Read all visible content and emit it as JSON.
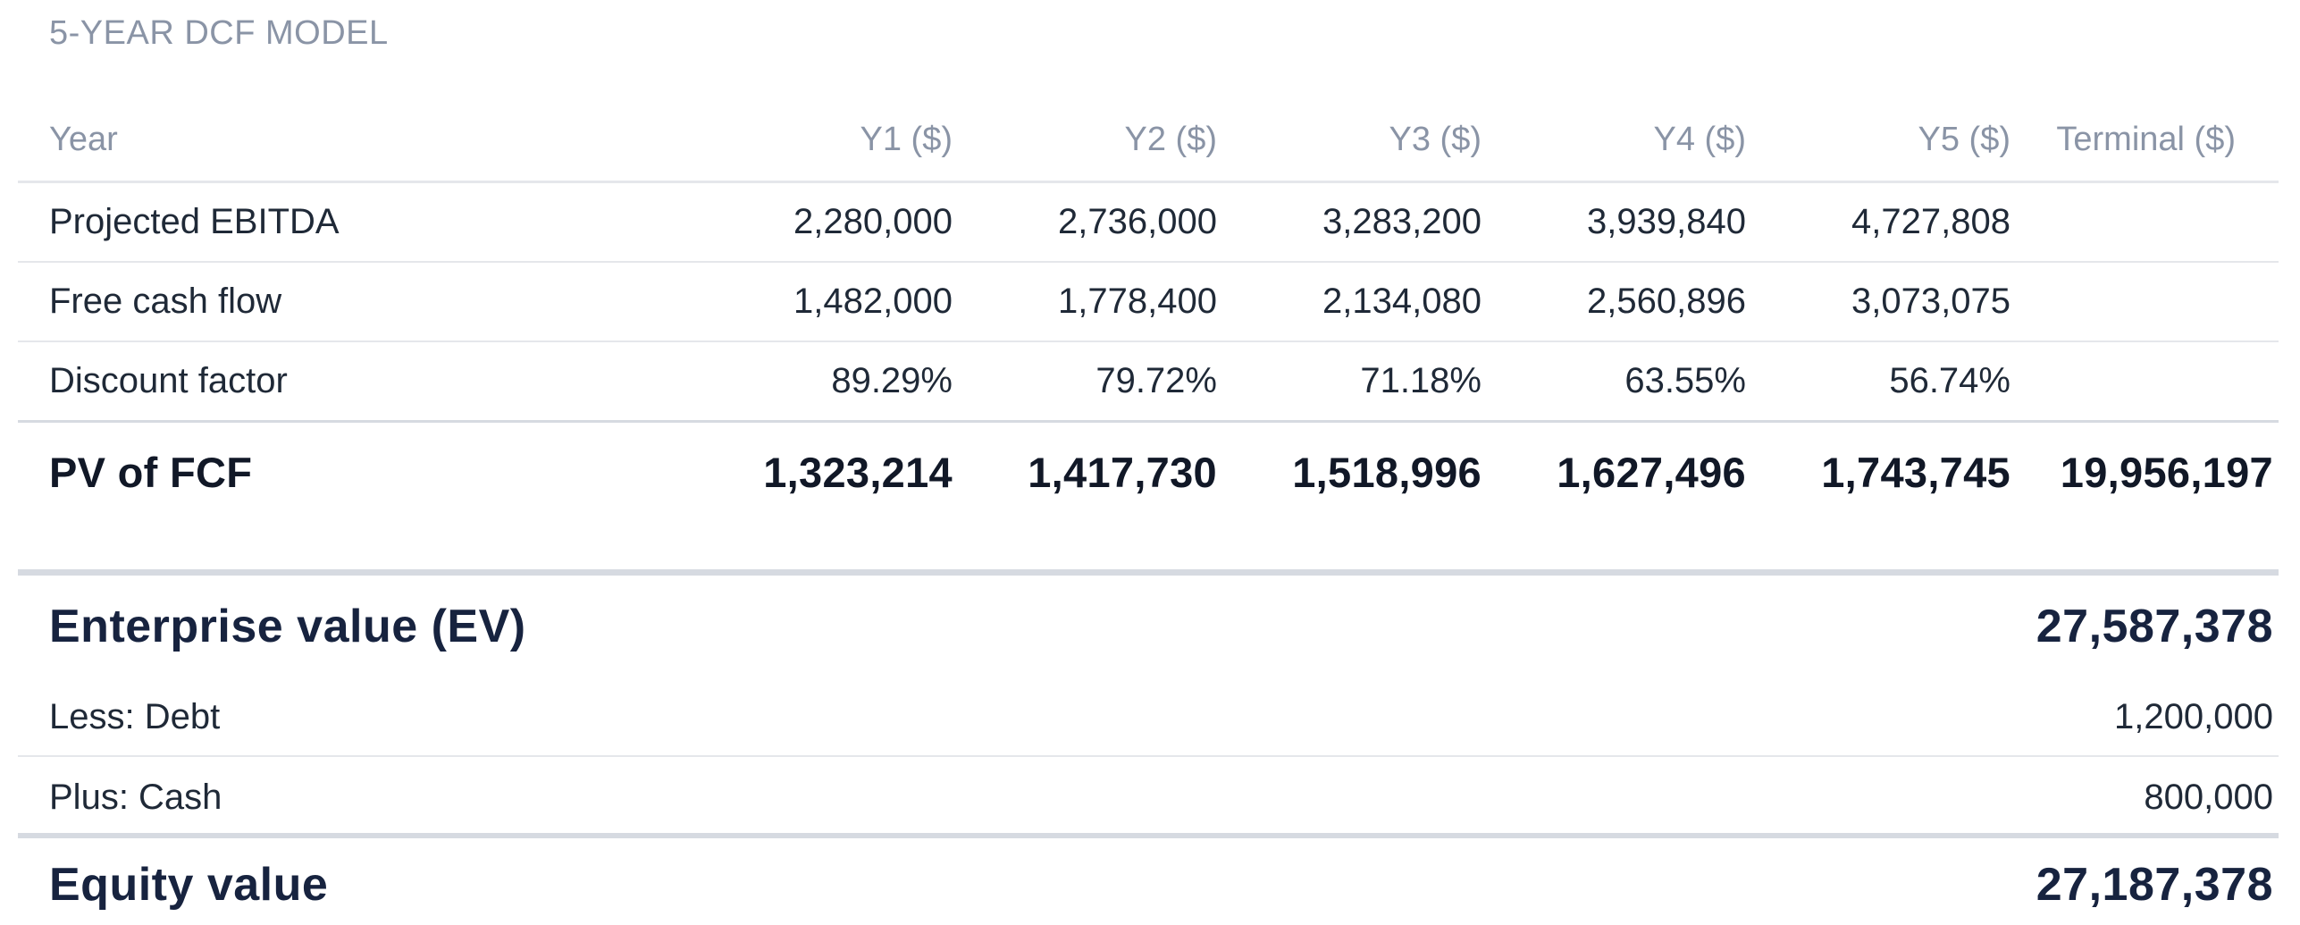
{
  "title": "5-YEAR DCF MODEL",
  "table": {
    "header": {
      "label": "Year",
      "columns": [
        "Y1 ($)",
        "Y2 ($)",
        "Y3 ($)",
        "Y4 ($)",
        "Y5 ($)",
        "Terminal ($)"
      ]
    },
    "rows": [
      {
        "label": "Projected EBITDA",
        "values": [
          "2,280,000",
          "2,736,000",
          "3,283,200",
          "3,939,840",
          "4,727,808",
          ""
        ]
      },
      {
        "label": "Free cash flow",
        "values": [
          "1,482,000",
          "1,778,400",
          "2,134,080",
          "2,560,896",
          "3,073,075",
          ""
        ]
      },
      {
        "label": "Discount factor",
        "values": [
          "89.29%",
          "79.72%",
          "71.18%",
          "63.55%",
          "56.74%",
          ""
        ]
      }
    ],
    "pv_row": {
      "label": "PV of FCF",
      "values": [
        "1,323,214",
        "1,417,730",
        "1,518,996",
        "1,627,496",
        "1,743,745",
        "19,956,197"
      ]
    }
  },
  "summary": {
    "ev": {
      "label": "Enterprise value (EV)",
      "value": "27,587,378"
    },
    "debt": {
      "label": "Less: Debt",
      "value": "1,200,000"
    },
    "cash": {
      "label": "Plus: Cash",
      "value": "800,000"
    },
    "equity": {
      "label": "Equity value",
      "value": "27,187,378"
    }
  }
}
